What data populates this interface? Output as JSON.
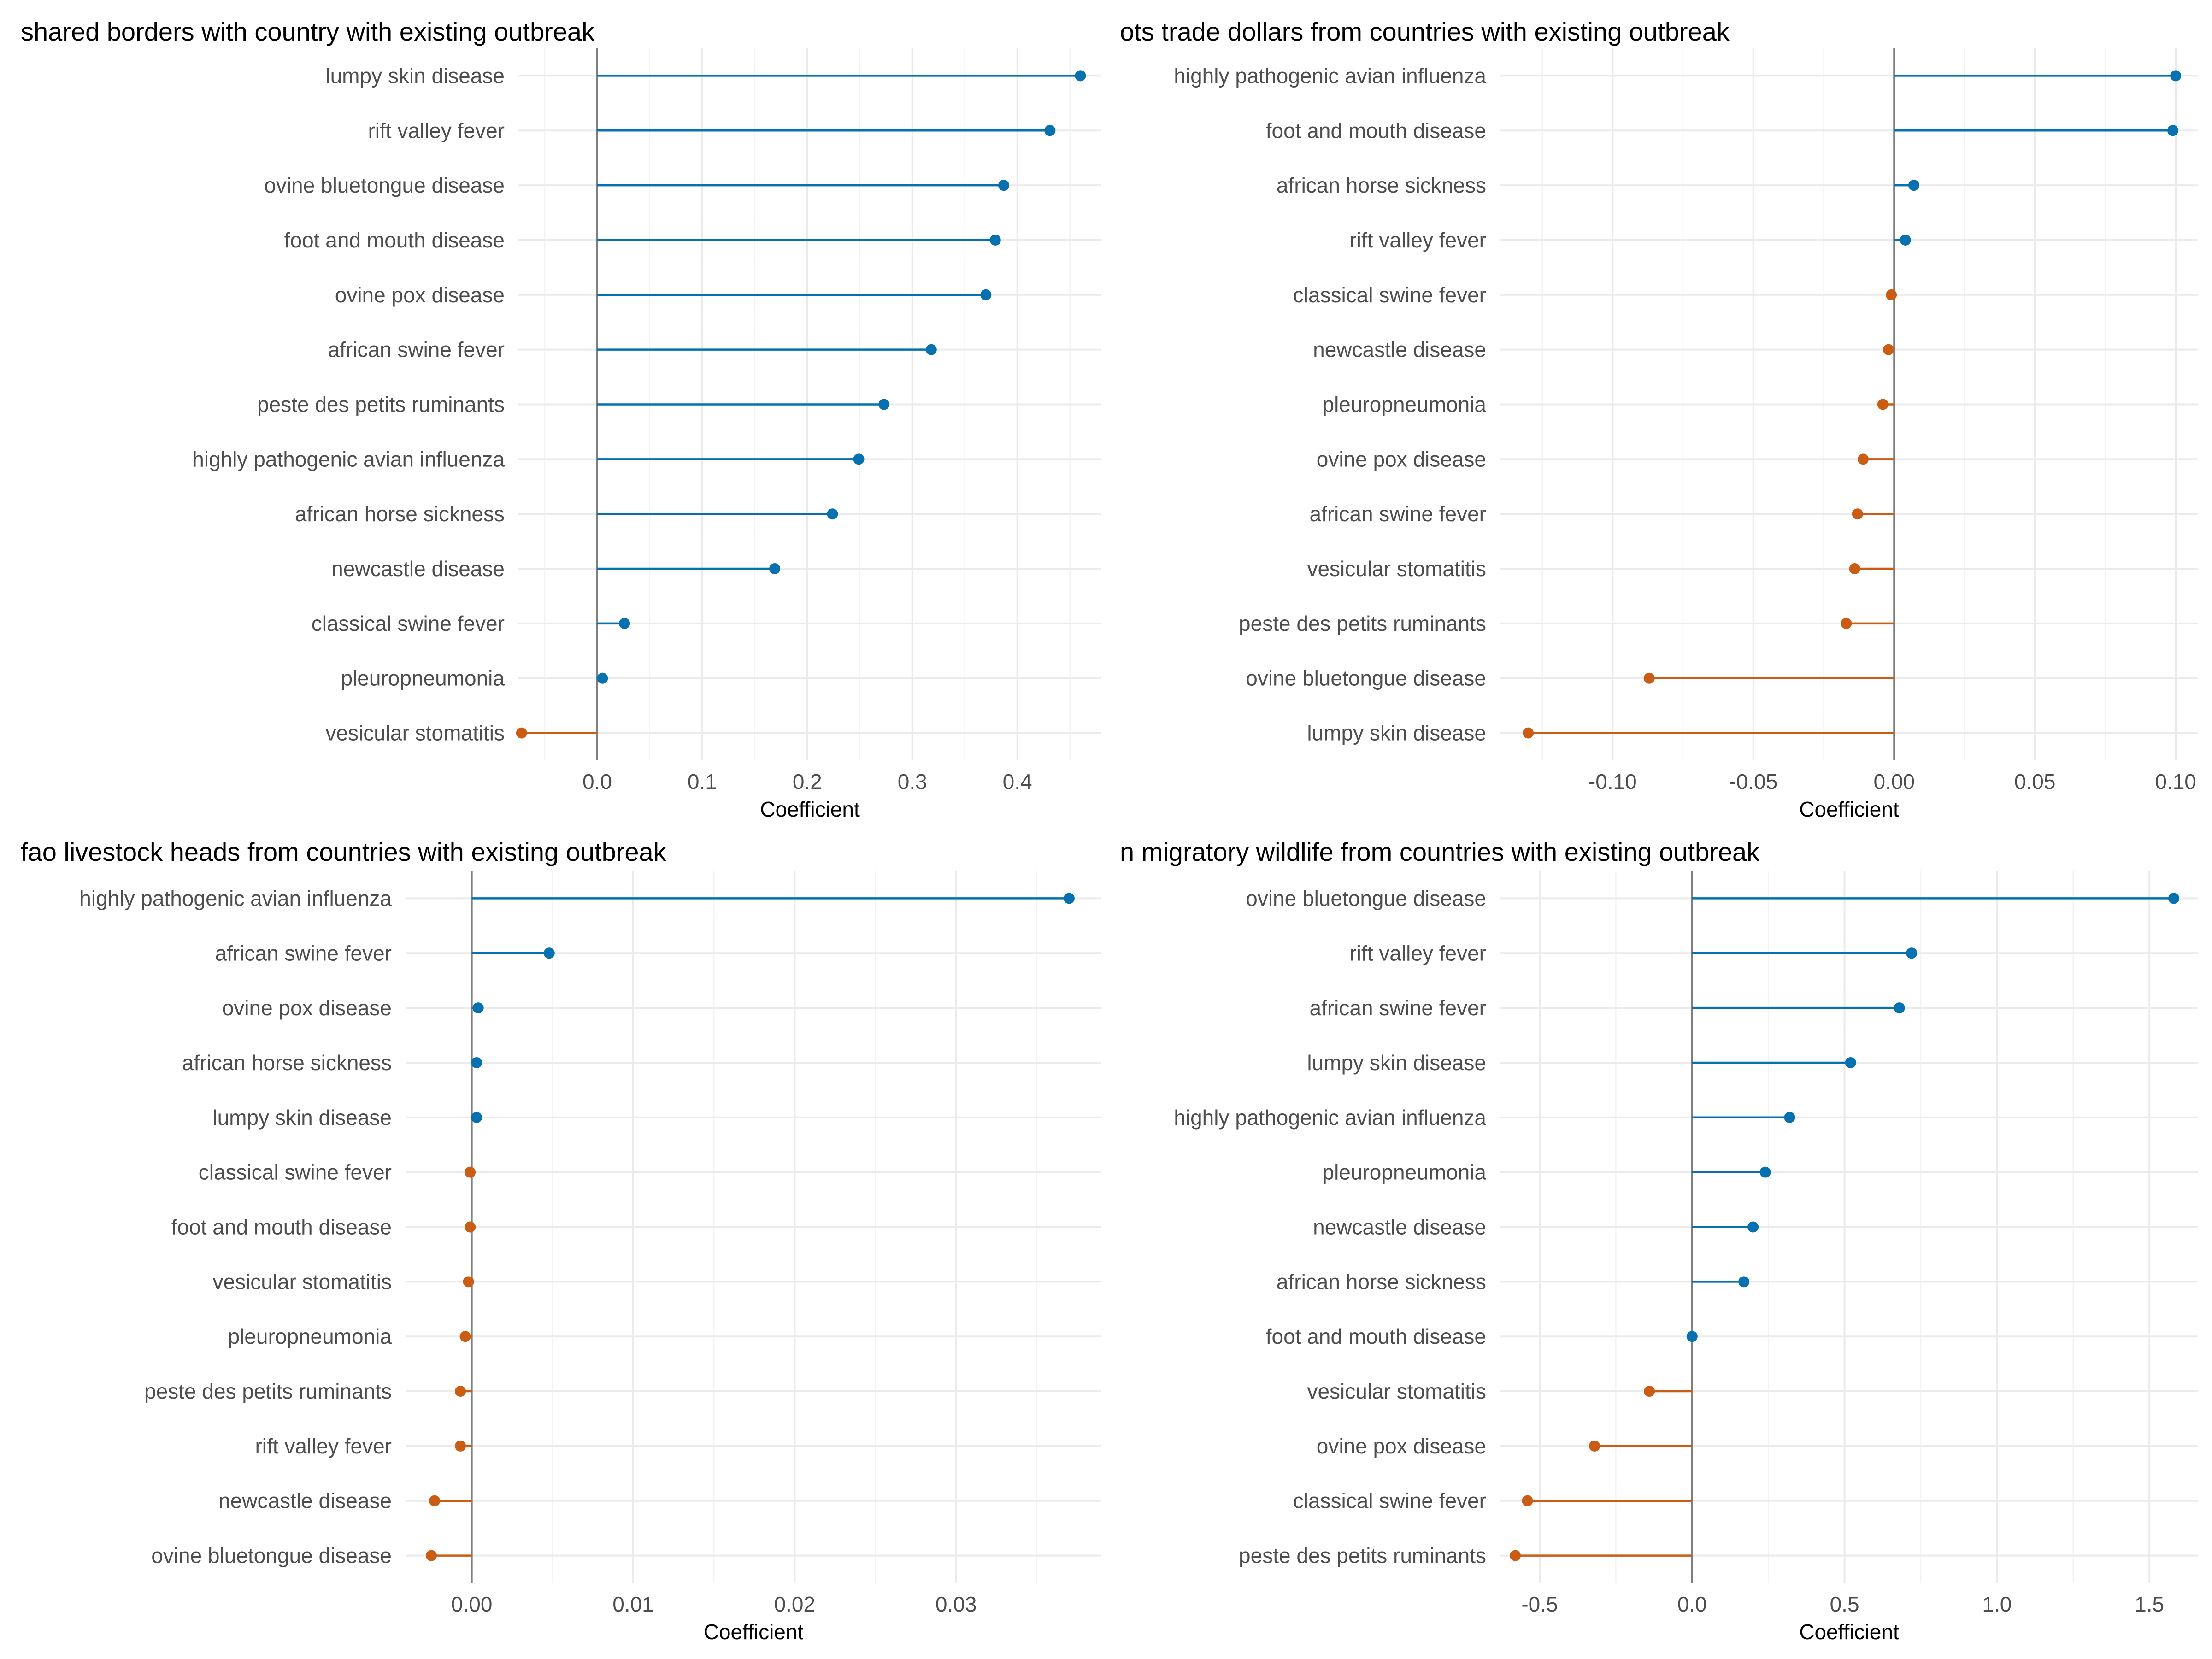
{
  "colors": {
    "positive": "#0571b0",
    "negative": "#ca5d13"
  },
  "chart_data": [
    {
      "type": "lollipop",
      "title": "shared borders with country with existing outbreak",
      "xlabel": "Coefficient",
      "xlim": [
        -0.075,
        0.48
      ],
      "ticks": [
        0.0,
        0.1,
        0.2,
        0.3,
        0.4
      ],
      "tick_labels": [
        "0.0",
        "0.1",
        "0.2",
        "0.3",
        "0.4"
      ],
      "categories": [
        "lumpy skin disease",
        "rift valley fever",
        "ovine bluetongue disease",
        "foot and mouth disease",
        "ovine pox disease",
        "african swine fever",
        "peste des petits ruminants",
        "highly pathogenic avian influenza",
        "african horse sickness",
        "newcastle disease",
        "classical swine fever",
        "pleuropneumonia",
        "vesicular stomatitis"
      ],
      "values": [
        0.46,
        0.431,
        0.387,
        0.379,
        0.37,
        0.318,
        0.273,
        0.249,
        0.224,
        0.169,
        0.026,
        0.005,
        -0.072
      ]
    },
    {
      "type": "lollipop",
      "title": "ots trade dollars from countries with existing outbreak",
      "xlabel": "Coefficient",
      "xlim": [
        -0.14,
        0.108
      ],
      "ticks": [
        -0.1,
        -0.05,
        0.0,
        0.05,
        0.1
      ],
      "tick_labels": [
        "-0.10",
        "-0.05",
        "0.00",
        "0.05",
        "0.10"
      ],
      "categories": [
        "highly pathogenic avian influenza",
        "foot and mouth disease",
        "african horse sickness",
        "rift valley fever",
        "classical swine fever",
        "newcastle disease",
        "pleuropneumonia",
        "ovine pox disease",
        "african swine fever",
        "vesicular stomatitis",
        "peste des petits ruminants",
        "ovine bluetongue disease",
        "lumpy skin disease"
      ],
      "values": [
        0.1,
        0.099,
        0.007,
        0.004,
        -0.001,
        -0.002,
        -0.004,
        -0.011,
        -0.013,
        -0.014,
        -0.017,
        -0.087,
        -0.13
      ]
    },
    {
      "type": "lollipop",
      "title": "fao livestock heads from countries with existing outbreak",
      "xlabel": "Coefficient",
      "xlim": [
        -0.0041,
        0.039
      ],
      "ticks": [
        0.0,
        0.01,
        0.02,
        0.03
      ],
      "tick_labels": [
        "0.00",
        "0.01",
        "0.02",
        "0.03"
      ],
      "categories": [
        "highly pathogenic avian influenza",
        "african swine fever",
        "ovine pox disease",
        "african horse sickness",
        "lumpy skin disease",
        "classical swine fever",
        "foot and mouth disease",
        "vesicular stomatitis",
        "pleuropneumonia",
        "peste des petits ruminants",
        "rift valley fever",
        "newcastle disease",
        "ovine bluetongue disease"
      ],
      "values": [
        0.037,
        0.0048,
        0.0004,
        0.0003,
        0.0003,
        -0.0001,
        -0.0001,
        -0.0002,
        -0.0004,
        -0.0007,
        -0.0007,
        -0.0023,
        -0.0025
      ]
    },
    {
      "type": "lollipop",
      "title": "n migratory wildlife from countries with existing outbreak",
      "xlabel": "Coefficient",
      "xlim": [
        -0.63,
        1.66
      ],
      "ticks": [
        -0.5,
        0.0,
        0.5,
        1.0,
        1.5
      ],
      "tick_labels": [
        "-0.5",
        "0.0",
        "0.5",
        "1.0",
        "1.5"
      ],
      "categories": [
        "ovine bluetongue disease",
        "rift valley fever",
        "african swine fever",
        "lumpy skin disease",
        "highly pathogenic avian influenza",
        "pleuropneumonia",
        "newcastle disease",
        "african horse sickness",
        "foot and mouth disease",
        "vesicular stomatitis",
        "ovine pox disease",
        "classical swine fever",
        "peste des petits ruminants"
      ],
      "values": [
        1.58,
        0.72,
        0.68,
        0.52,
        0.32,
        0.24,
        0.2,
        0.17,
        0.0,
        -0.14,
        -0.32,
        -0.54,
        -0.58
      ]
    }
  ]
}
